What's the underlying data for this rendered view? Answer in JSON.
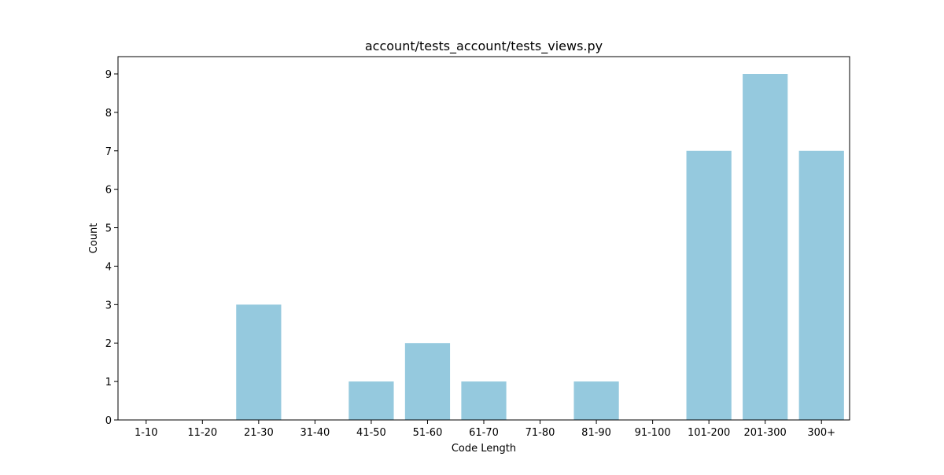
{
  "chart_data": {
    "type": "bar",
    "title": "account/tests_account/tests_views.py",
    "xlabel": "Code Length",
    "ylabel": "Count",
    "categories": [
      "1-10",
      "11-20",
      "21-30",
      "31-40",
      "41-50",
      "51-60",
      "61-70",
      "71-80",
      "81-90",
      "91-100",
      "101-200",
      "201-300",
      "300+"
    ],
    "values": [
      0,
      0,
      3,
      0,
      1,
      2,
      1,
      0,
      1,
      0,
      7,
      9,
      7
    ],
    "ylim": [
      0,
      9.45
    ],
    "yticks": [
      0,
      1,
      2,
      3,
      4,
      5,
      6,
      7,
      8,
      9
    ],
    "grid": false,
    "legend": "none",
    "bar_color": "#95c9de",
    "axis_color": "#000000"
  }
}
